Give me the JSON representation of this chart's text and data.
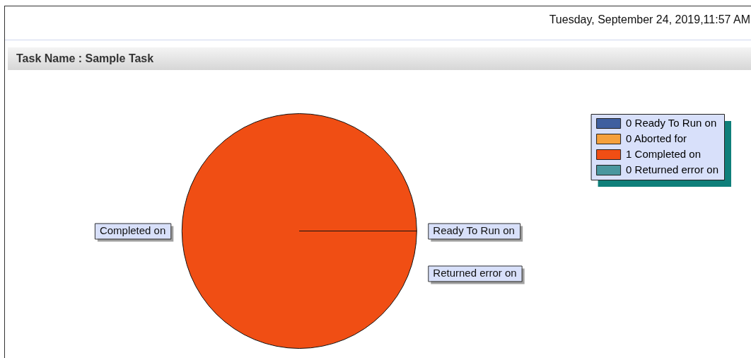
{
  "chart_data": {
    "type": "pie",
    "title": "Task Name : Sample Task",
    "annotations": [
      "Tuesday, September 24, 2019,11:57 AM"
    ],
    "categories": [
      "0 Ready To Run on",
      "0 Aborted for",
      "1 Completed on",
      "0 Returned error on"
    ],
    "values": [
      0,
      0,
      1,
      0
    ],
    "colors": [
      "#3f5f9f",
      "#f5a03c",
      "#f04e14",
      "#4a979f"
    ],
    "value_labels": [
      "Ready To Run on",
      null,
      "Completed on",
      "Returned error on"
    ],
    "legend": "top right"
  }
}
